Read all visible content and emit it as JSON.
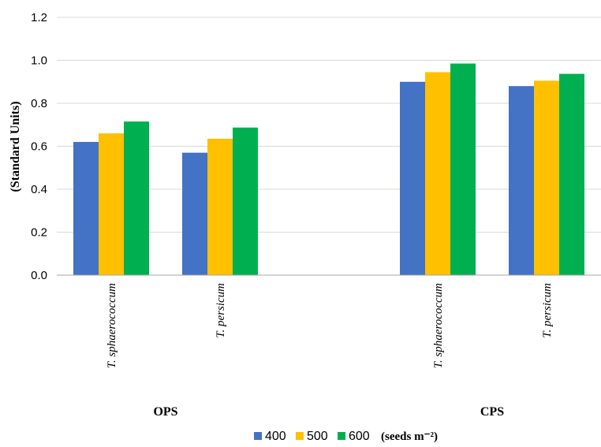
{
  "chart_data": {
    "type": "bar",
    "ylabel": "(Standard Units)",
    "ylim": [
      0,
      1.2
    ],
    "yticks": [
      "0.0",
      "0.2",
      "0.4",
      "0.6",
      "0.8",
      "1.0",
      "1.2"
    ],
    "grid": true,
    "legend_position": "bottom",
    "legend_unit": "(seeds m⁻²)",
    "categories": [
      "T. sphaerococcum",
      "T. persicum",
      "",
      "T. sphaerococcum",
      "T. persicum"
    ],
    "groups": [
      "OPS",
      "CPS"
    ],
    "series": [
      {
        "name": "400",
        "color": "#4472C4",
        "values": [
          0.62,
          0.57,
          null,
          0.9,
          0.88
        ]
      },
      {
        "name": "500",
        "color": "#FFC000",
        "values": [
          0.66,
          0.635,
          null,
          0.945,
          0.905
        ]
      },
      {
        "name": "600",
        "color": "#00B050",
        "values": [
          0.715,
          0.687,
          null,
          0.985,
          0.937
        ]
      }
    ]
  }
}
